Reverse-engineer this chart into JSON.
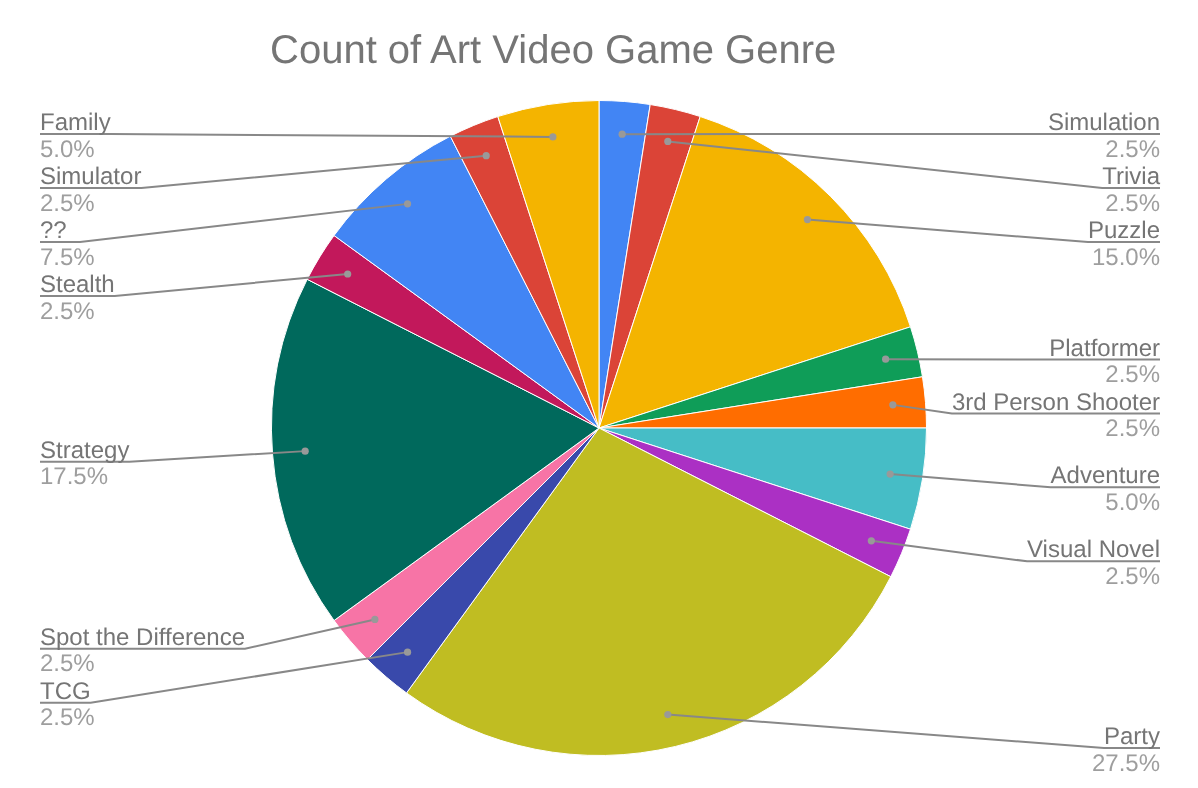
{
  "chart_data": {
    "type": "pie",
    "title": "Count of Art Video Game Genre",
    "categories": [
      "Simulation",
      "Trivia",
      "Puzzle",
      "Platformer",
      "3rd Person Shooter",
      "Adventure",
      "Visual Novel",
      "Party",
      "TCG",
      "Spot the Difference",
      "Strategy",
      "Stealth",
      "??",
      "Simulator",
      "Family"
    ],
    "values": [
      2.5,
      2.5,
      15,
      2.5,
      2.5,
      5,
      2.5,
      27.5,
      2.5,
      2.5,
      17.5,
      2.5,
      7.5,
      2.5,
      5
    ],
    "value_labels": [
      "2.5%",
      "2.5%",
      "15.0%",
      "2.5%",
      "2.5%",
      "5.0%",
      "2.5%",
      "27.5%",
      "2.5%",
      "2.5%",
      "17.5%",
      "2.5%",
      "7.5%",
      "2.5%",
      "5.0%"
    ],
    "colors": [
      "#4285f4",
      "#db4437",
      "#f4b400",
      "#0f9d58",
      "#ff6d00",
      "#46bdc6",
      "#ab30c4",
      "#c0bd22",
      "#3949ab",
      "#f774a6",
      "#00695c",
      "#c2185b",
      "#4285f4",
      "#db4437",
      "#f4b400"
    ],
    "legend": false
  }
}
